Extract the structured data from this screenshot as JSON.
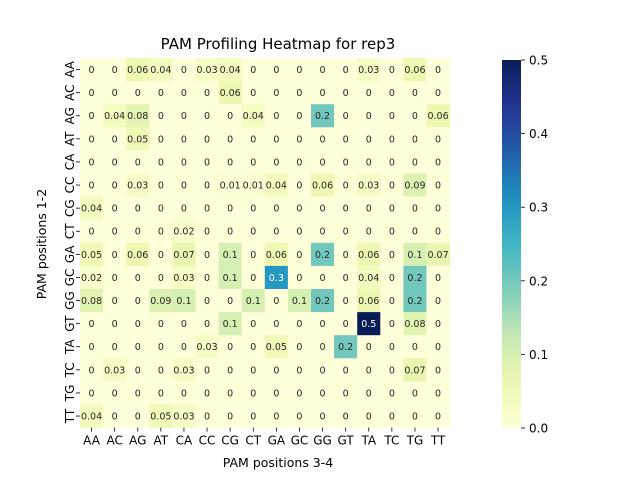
{
  "chart_data": {
    "type": "heatmap",
    "title": "PAM Profiling Heatmap for rep3",
    "xlabel": "PAM positions 3-4",
    "ylabel": "PAM positions 1-2",
    "x_categories": [
      "AA",
      "AC",
      "AG",
      "AT",
      "CA",
      "CC",
      "CG",
      "CT",
      "GA",
      "GC",
      "GG",
      "GT",
      "TA",
      "TC",
      "TG",
      "TT"
    ],
    "y_categories": [
      "AA",
      "AC",
      "AG",
      "AT",
      "CA",
      "CC",
      "CG",
      "CT",
      "GA",
      "GC",
      "GG",
      "GT",
      "TA",
      "TC",
      "TG",
      "TT"
    ],
    "values": [
      [
        0,
        0,
        0.06,
        0.04,
        0,
        0.03,
        0.04,
        0,
        0,
        0,
        0,
        0,
        0.03,
        0,
        0.06,
        0
      ],
      [
        0,
        0,
        0,
        0,
        0,
        0,
        0.06,
        0,
        0,
        0,
        0,
        0,
        0,
        0,
        0,
        0
      ],
      [
        0,
        0.04,
        0.08,
        0,
        0,
        0,
        0,
        0.04,
        0,
        0,
        0.2,
        0,
        0,
        0,
        0,
        0.06
      ],
      [
        0,
        0,
        0.05,
        0,
        0,
        0,
        0,
        0,
        0,
        0,
        0,
        0,
        0,
        0,
        0,
        0
      ],
      [
        0,
        0,
        0,
        0,
        0,
        0,
        0,
        0,
        0,
        0,
        0,
        0,
        0,
        0,
        0,
        0
      ],
      [
        0,
        0,
        0.03,
        0,
        0,
        0,
        0.01,
        0.01,
        0.04,
        0,
        0.06,
        0,
        0.03,
        0,
        0.09,
        0
      ],
      [
        0.04,
        0,
        0,
        0,
        0,
        0,
        0,
        0,
        0,
        0,
        0,
        0,
        0,
        0,
        0,
        0
      ],
      [
        0,
        0,
        0,
        0,
        0.02,
        0,
        0,
        0,
        0,
        0,
        0,
        0,
        0,
        0,
        0,
        0
      ],
      [
        0.05,
        0,
        0.06,
        0,
        0.07,
        0,
        0.1,
        0,
        0.06,
        0,
        0.2,
        0,
        0.06,
        0,
        0.1,
        0.07
      ],
      [
        0.02,
        0,
        0,
        0,
        0.03,
        0,
        0.1,
        0,
        0.3,
        0,
        0,
        0,
        0.04,
        0,
        0.2,
        0
      ],
      [
        0.08,
        0,
        0,
        0.09,
        0.1,
        0,
        0,
        0.1,
        0,
        0.1,
        0.2,
        0,
        0.06,
        0,
        0.2,
        0
      ],
      [
        0,
        0,
        0,
        0,
        0,
        0,
        0.1,
        0,
        0,
        0,
        0,
        0,
        0.5,
        0,
        0.08,
        0
      ],
      [
        0,
        0,
        0,
        0,
        0,
        0.03,
        0,
        0,
        0.05,
        0,
        0,
        0.2,
        0,
        0,
        0,
        0
      ],
      [
        0,
        0.03,
        0,
        0,
        0.03,
        0,
        0,
        0,
        0,
        0,
        0,
        0,
        0,
        0,
        0.07,
        0
      ],
      [
        0,
        0,
        0,
        0,
        0,
        0,
        0,
        0,
        0,
        0,
        0,
        0,
        0,
        0,
        0,
        0
      ],
      [
        0.04,
        0,
        0,
        0.05,
        0.03,
        0,
        0,
        0,
        0,
        0,
        0,
        0,
        0,
        0,
        0,
        0
      ]
    ],
    "colormap": "YlGnBu",
    "colorbar": {
      "vmin": 0.0,
      "vmax": 0.5,
      "ticks": [
        "0.0",
        "0.1",
        "0.2",
        "0.3",
        "0.4",
        "0.5"
      ]
    },
    "annotated": true,
    "grid": false
  }
}
